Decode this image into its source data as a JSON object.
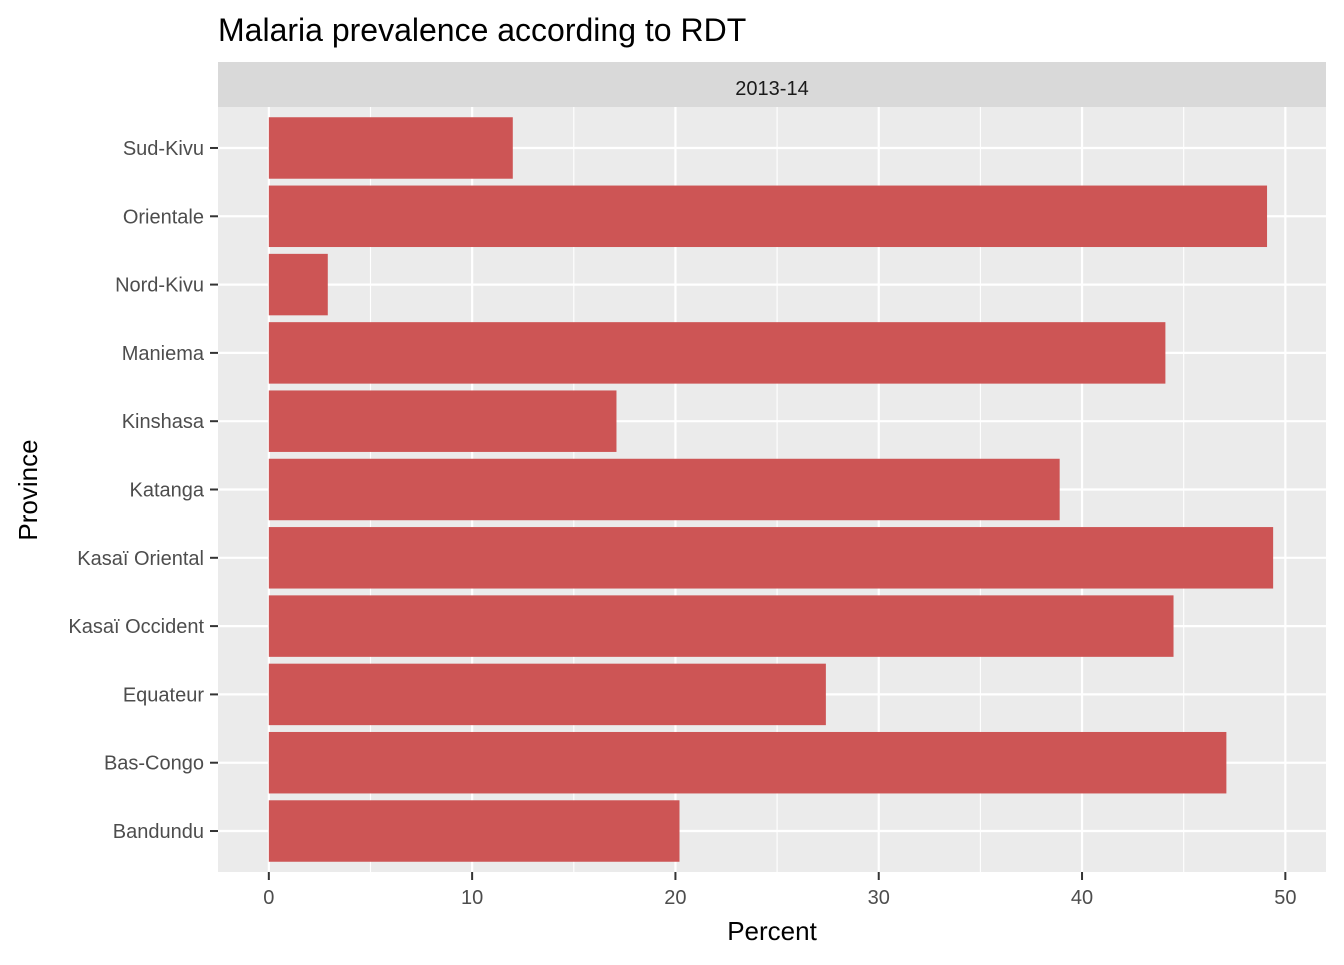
{
  "chart_data": {
    "type": "bar",
    "orientation": "horizontal",
    "title": "Malaria prevalence according to RDT",
    "facet_label": "2013-14",
    "xlabel": "Percent",
    "ylabel": "Province",
    "categories": [
      "Bandundu",
      "Bas-Congo",
      "Equateur",
      "Kasaï Occident",
      "Kasaï Oriental",
      "Katanga",
      "Kinshasa",
      "Maniema",
      "Nord-Kivu",
      "Orientale",
      "Sud-Kivu"
    ],
    "values": [
      20.2,
      47.1,
      27.4,
      44.5,
      49.4,
      38.9,
      17.1,
      44.1,
      2.9,
      49.1,
      12.0
    ],
    "xlim": [
      -2.5,
      52
    ],
    "xticks": [
      0,
      10,
      20,
      30,
      40,
      50
    ],
    "grid": true,
    "legend": "none",
    "colors": {
      "bar": "#CD5555",
      "panel_background": "#EBEBEB",
      "strip_background": "#D9D9D9",
      "grid": "#FFFFFF",
      "axis_text": "#4D4D4D",
      "title_text": "#000000"
    }
  }
}
